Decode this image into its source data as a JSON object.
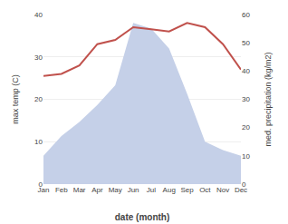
{
  "chart_data": {
    "type": "line",
    "categories": [
      "Jan",
      "Feb",
      "Mar",
      "Apr",
      "May",
      "Jun",
      "Jul",
      "Aug",
      "Sep",
      "Oct",
      "Nov",
      "Dec"
    ],
    "series": [
      {
        "type": "area",
        "axis": "y2",
        "color": "#c5d0e8",
        "values": [
          10,
          17,
          22,
          28,
          35,
          57,
          55,
          48,
          32,
          15,
          12,
          10
        ]
      },
      {
        "type": "line",
        "axis": "y",
        "color": "#c0514c",
        "values": [
          25.5,
          26,
          28,
          33,
          34,
          37,
          36.5,
          36,
          38,
          37,
          33,
          27
        ]
      }
    ],
    "xlabel": "date (month)",
    "ylabel": "max temp (C)",
    "y2label": "med. precipitation (kg/m2)",
    "ylim": [
      0,
      40
    ],
    "yticks": [
      0,
      10,
      20,
      30,
      40
    ],
    "y2lim": [
      0,
      60
    ],
    "y2ticks": [
      0,
      10,
      20,
      30,
      40,
      50,
      60
    ],
    "grid": true
  }
}
